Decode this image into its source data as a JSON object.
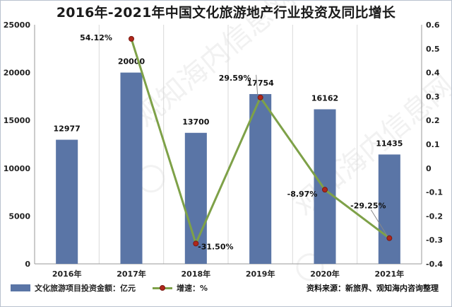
{
  "title": "2016年-2021年中国文化旅游地产行业投资及同比增长",
  "source": "资料来源：新旅界、观知海内咨询整理",
  "watermark": "观知海内信息网",
  "legend": {
    "bar_label": "文化旅游项目投资金额：亿元",
    "line_label": "增速：%"
  },
  "colors": {
    "bar": "#5a75a6",
    "line": "#7ea148",
    "marker": "#b0271b",
    "grid": "#d9d9d9"
  },
  "chart_data": {
    "type": "bar",
    "title": "2016年-2021年中国文化旅游地产行业投资及同比增长",
    "categories": [
      "2016年",
      "2017年",
      "2018年",
      "2019年",
      "2020年",
      "2021年"
    ],
    "series": [
      {
        "name": "文化旅游项目投资金额：亿元",
        "type": "bar",
        "axis": "left",
        "values": [
          12977,
          20000,
          13700,
          17754,
          16162,
          11435
        ],
        "labels": [
          "12977",
          "20000",
          "13700",
          "17754",
          "16162",
          "11435"
        ]
      },
      {
        "name": "增速：%",
        "type": "line",
        "axis": "right",
        "values": [
          null,
          0.5412,
          -0.315,
          0.2959,
          -0.0897,
          -0.2925
        ],
        "labels": [
          "",
          "54.12%",
          "-31.50%",
          "29.59%",
          "-8.97%",
          "-29.25%"
        ]
      }
    ],
    "y_left": {
      "lim": [
        0,
        25000
      ],
      "ticks": [
        "0",
        "5000",
        "10000",
        "15000",
        "20000",
        "25000"
      ]
    },
    "y_right": {
      "lim": [
        -0.4,
        0.6
      ],
      "ticks": [
        "-0.4",
        "-0.3",
        "-0.2",
        "-0.1",
        "0",
        "0.1",
        "0.2",
        "0.3",
        "0.4",
        "0.5",
        "0.6"
      ]
    },
    "grid": "vertical",
    "legend_position": "bottom-left"
  }
}
